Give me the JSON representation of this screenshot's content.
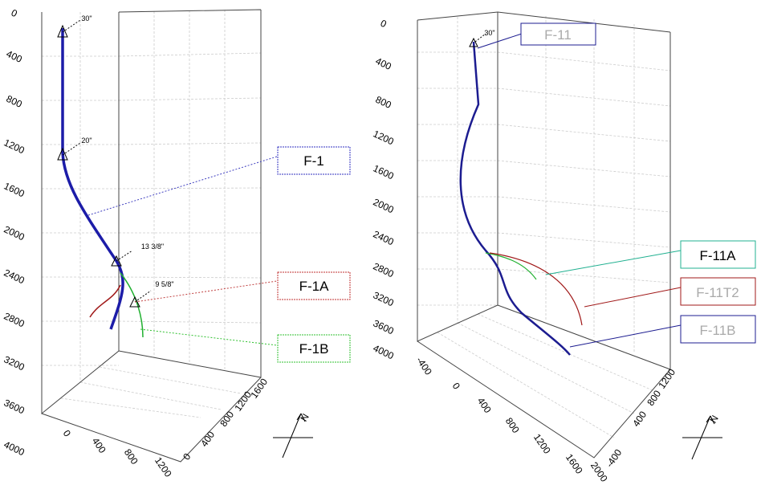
{
  "left": {
    "depth_ticks": [
      "0",
      "400",
      "800",
      "1200",
      "1600",
      "2000",
      "2400",
      "2800",
      "3200",
      "3600",
      "4000"
    ],
    "x_ticks": [
      "0",
      "400",
      "800",
      "1200"
    ],
    "y_ticks": [
      "0",
      "400",
      "800",
      "1200",
      "1600"
    ],
    "casings": [
      "30\"",
      "20\"",
      "13 3/8\"",
      "9 5/8\""
    ],
    "wells": [
      "F-1",
      "F-1A",
      "F-1B"
    ],
    "north": "N"
  },
  "right": {
    "depth_ticks": [
      "0",
      "400",
      "800",
      "1200",
      "1600",
      "2000",
      "2400",
      "2800",
      "3200",
      "3600",
      "4000"
    ],
    "x_ticks": [
      "-400",
      "0",
      "400",
      "800",
      "1200",
      "1600",
      "2000"
    ],
    "y_ticks": [
      "-400",
      "400",
      "800",
      "1200"
    ],
    "casings": [
      "30\""
    ],
    "wells": [
      "F-11",
      "F-11A",
      "F-11T2",
      "F-11B"
    ],
    "north": "N"
  }
}
